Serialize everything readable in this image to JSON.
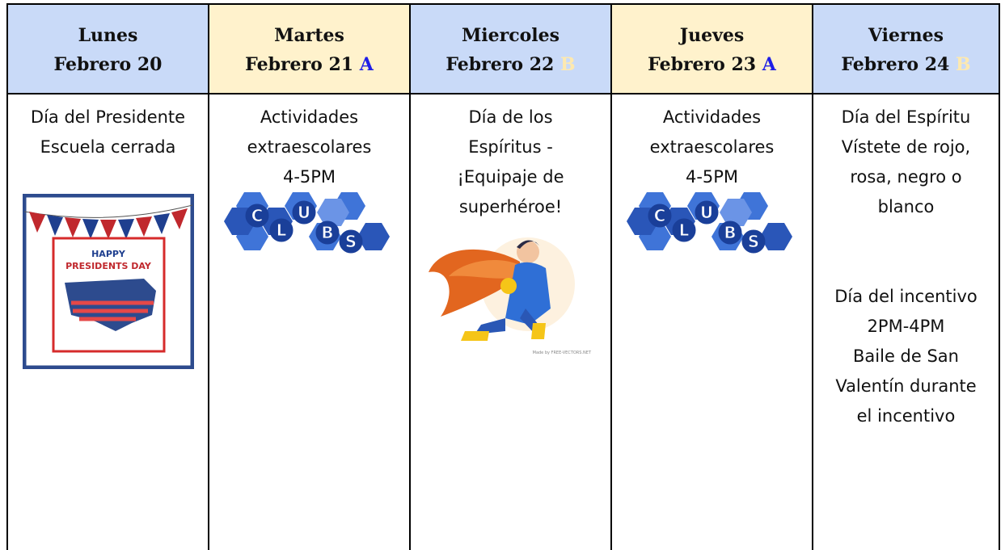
{
  "table": {
    "columns": [
      {
        "day": "Lunes",
        "date": "Febrero 20"
      },
      {
        "day": "Martes",
        "date": "Febrero 21",
        "letter": "A"
      },
      {
        "day": "Miercoles",
        "date": "Febrero 22",
        "letter": "B"
      },
      {
        "day": "Jueves",
        "date": "Febrero 23",
        "letter": "A"
      },
      {
        "day": "Viernes",
        "date": "Febrero 24",
        "letter": "B"
      }
    ],
    "cells": [
      {
        "paragraphs": [
          [
            "Día del Presidente",
            "Escuela cerrada"
          ]
        ],
        "image_text": [
          "HAPPY",
          "PRESIDENTS DAY"
        ]
      },
      {
        "paragraphs": [
          [
            "Actividades",
            "extraescolares",
            "4-5PM"
          ]
        ],
        "image_text": [
          "C",
          "L",
          "U",
          "B",
          "S"
        ]
      },
      {
        "paragraphs": [
          [
            "Día de los",
            "Espíritus -",
            "¡Equipaje de",
            "superhéroe!"
          ]
        ],
        "image_text": [
          "Made by FREE-VECTORS.NET"
        ]
      },
      {
        "paragraphs": [
          [
            "Actividades",
            "extraescolares",
            "4-5PM"
          ]
        ],
        "image_text": [
          "C",
          "L",
          "U",
          "B",
          "S"
        ]
      },
      {
        "paragraphs": [
          [
            "Día del Espíritu",
            "Vístete de rojo,",
            "rosa, negro o",
            "blanco"
          ],
          [
            "Día del incentivo",
            "2PM-4PM",
            "Baile de San",
            "Valentín durante",
            "el incentivo"
          ]
        ]
      }
    ]
  }
}
